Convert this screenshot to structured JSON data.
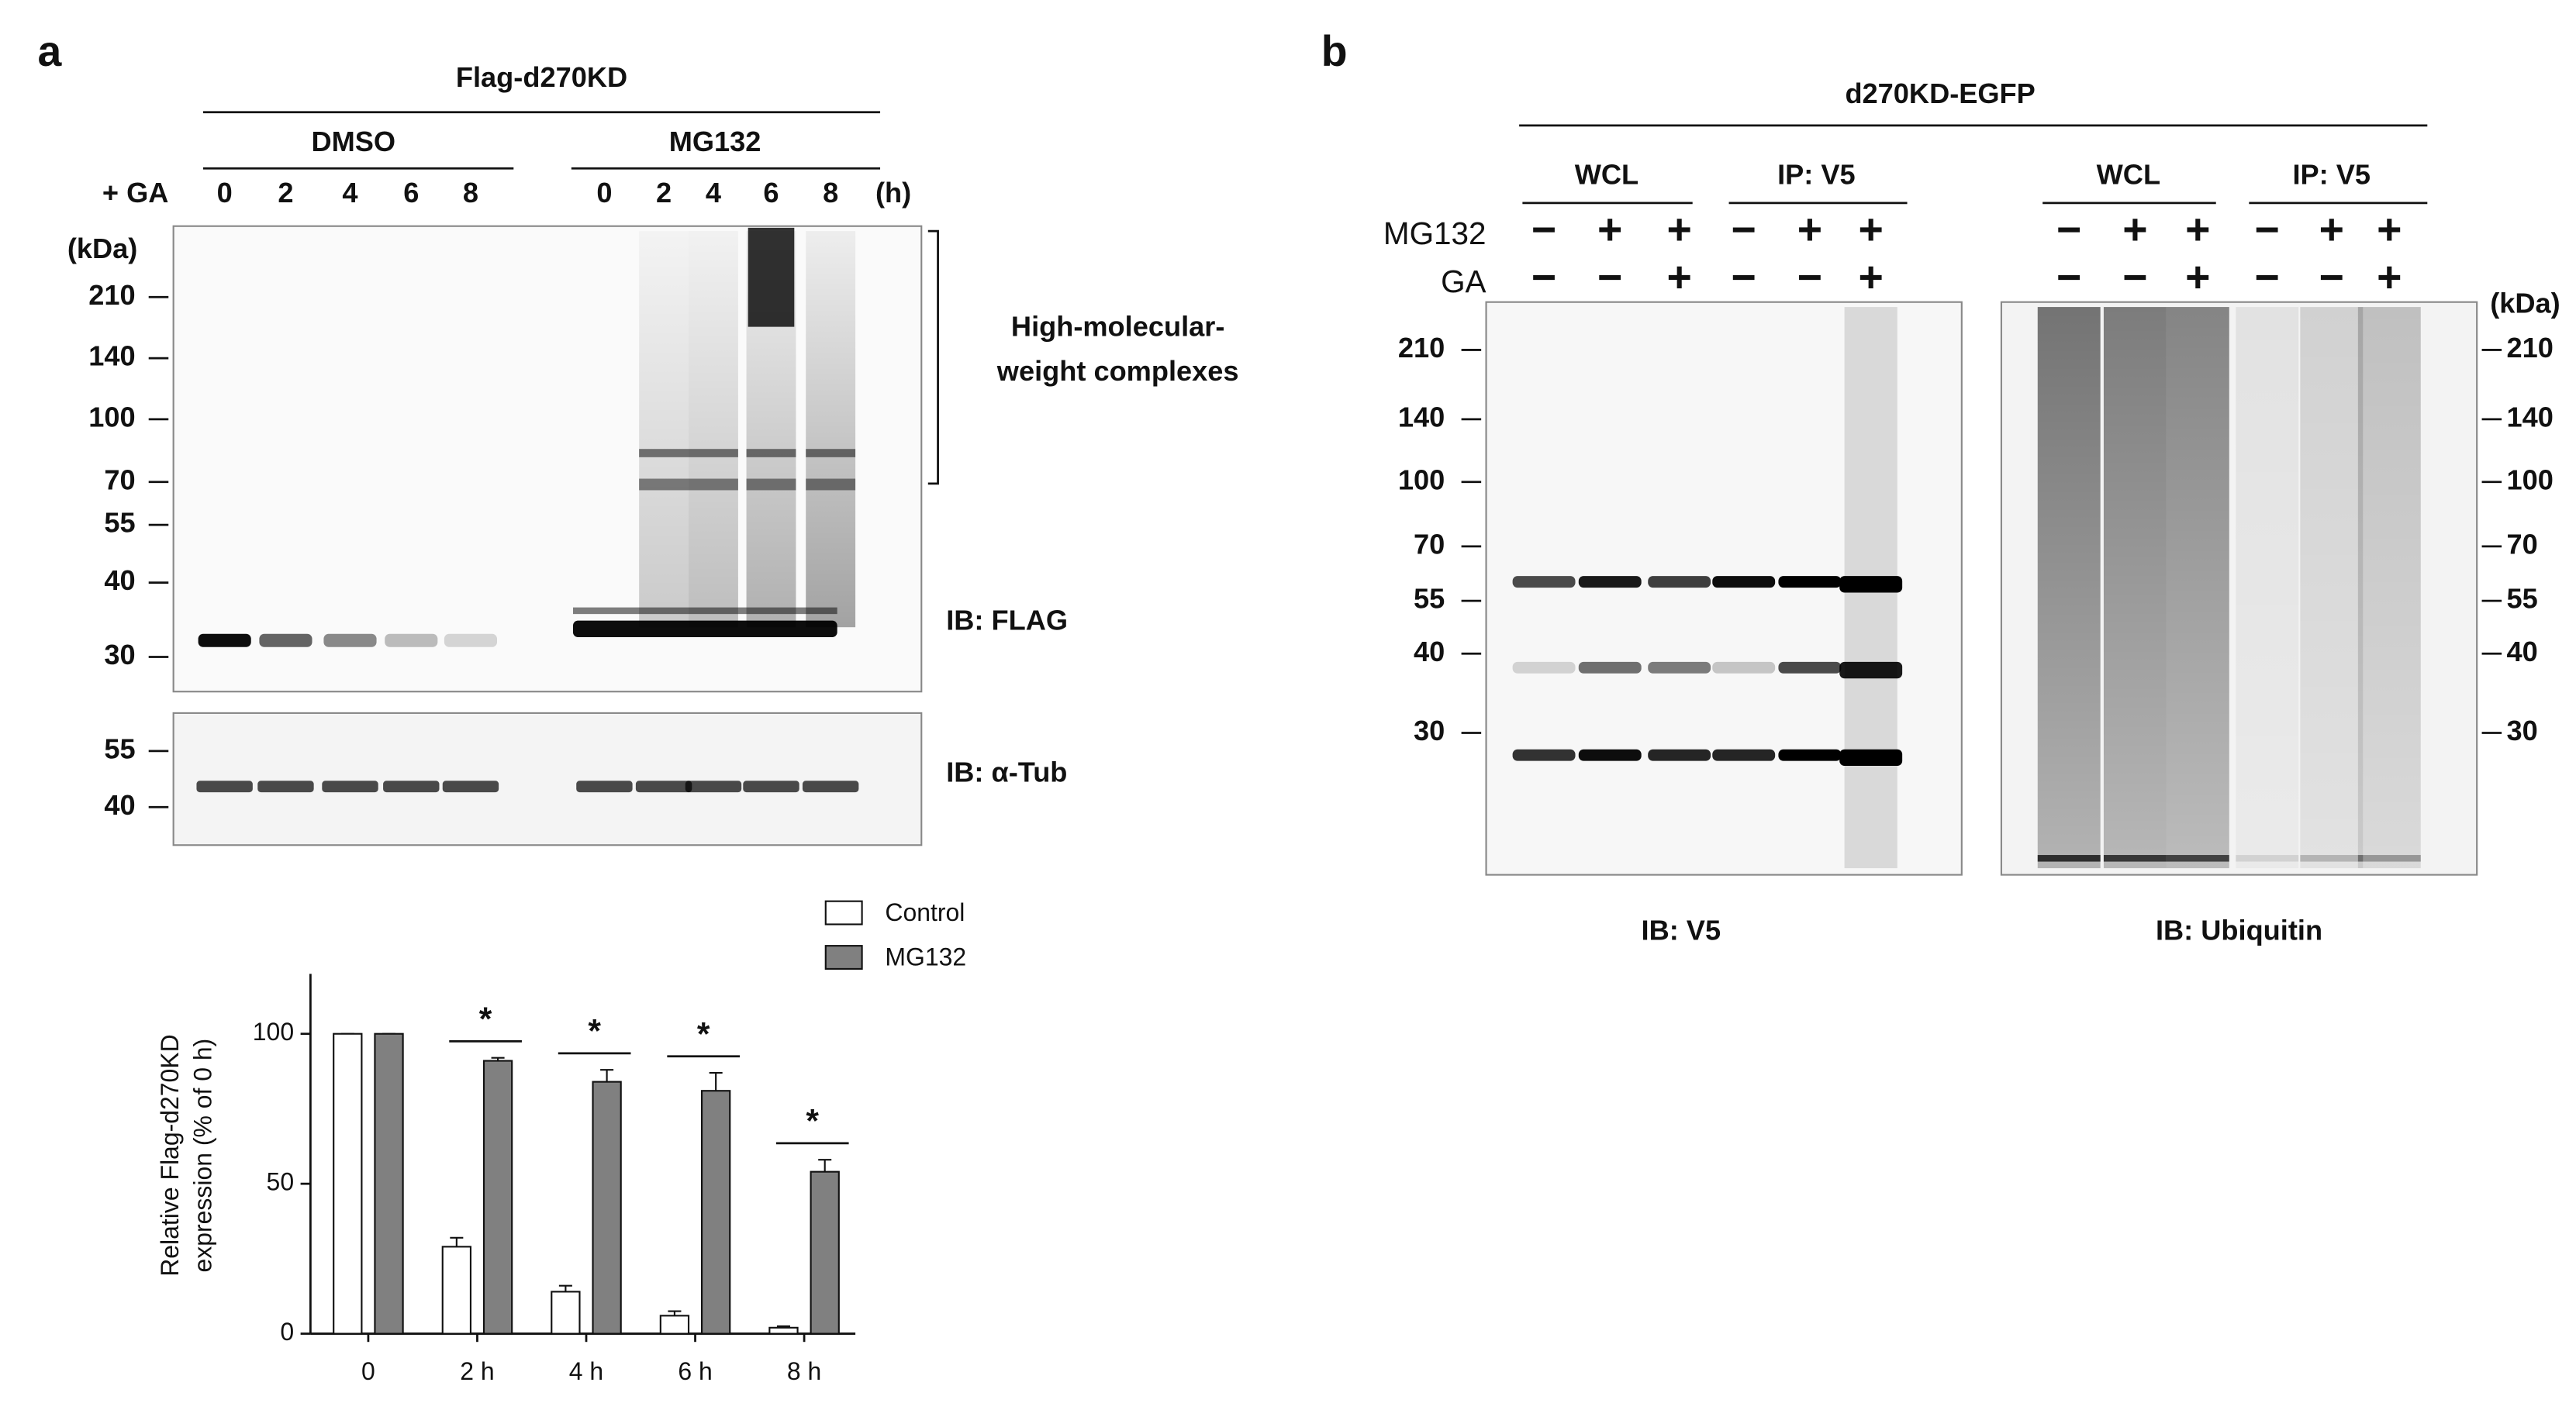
{
  "panel_a": {
    "label": "a",
    "construct": "Flag-d270KD",
    "groups": [
      "DMSO",
      "MG132"
    ],
    "treatment": "+ GA",
    "lanes": [
      "0",
      "2",
      "4",
      "6",
      "8",
      "0",
      "2",
      "4",
      "6",
      "8"
    ],
    "time_unit": "(h)",
    "kda_label": "(kDa)",
    "markers": [
      210,
      140,
      100,
      70,
      55,
      40,
      30
    ],
    "bracket_label": [
      "High-molecular-",
      "weight complexes"
    ],
    "blot_labels": [
      "IB: FLAG",
      "IB: α-Tub"
    ],
    "tub_markers": [
      55,
      40
    ]
  },
  "chart_data": {
    "type": "bar",
    "ylabel": [
      "Relative Flag-d270KD",
      "expression (% of 0 h)"
    ],
    "categories": [
      "0",
      "2 h",
      "4 h",
      "6 h",
      "8 h"
    ],
    "series": [
      {
        "name": "Control",
        "color": "#ffffff",
        "values": [
          100,
          29,
          14,
          6,
          2
        ],
        "errors": [
          0,
          3,
          2,
          1.5,
          0.5
        ]
      },
      {
        "name": "MG132",
        "color": "#808080",
        "values": [
          100,
          91,
          84,
          81,
          54
        ],
        "errors": [
          0,
          1,
          4,
          6,
          4
        ]
      }
    ],
    "significance": [
      null,
      "*",
      "*",
      "*",
      "*"
    ],
    "ylim": [
      0,
      120
    ],
    "yticks": [
      0,
      50,
      100
    ]
  },
  "panel_b": {
    "label": "b",
    "construct": "d270KD-EGFP",
    "groups": [
      "WCL",
      "IP: V5",
      "WCL",
      "IP: V5"
    ],
    "row_labels": [
      "MG132",
      "GA"
    ],
    "mg132_signs": [
      "−",
      "+",
      "+",
      "−",
      "+",
      "+",
      "−",
      "+",
      "+",
      "−",
      "+",
      "+"
    ],
    "ga_signs": [
      "−",
      "−",
      "+",
      "−",
      "−",
      "+",
      "−",
      "−",
      "+",
      "−",
      "−",
      "+"
    ],
    "kda_label": "(kDa)",
    "markers_left": [
      210,
      140,
      100,
      70,
      55,
      40,
      30
    ],
    "markers_right": [
      210,
      140,
      100,
      70,
      55,
      40,
      30
    ],
    "blot_labels": [
      "IB: V5",
      "IB: Ubiquitin"
    ]
  }
}
